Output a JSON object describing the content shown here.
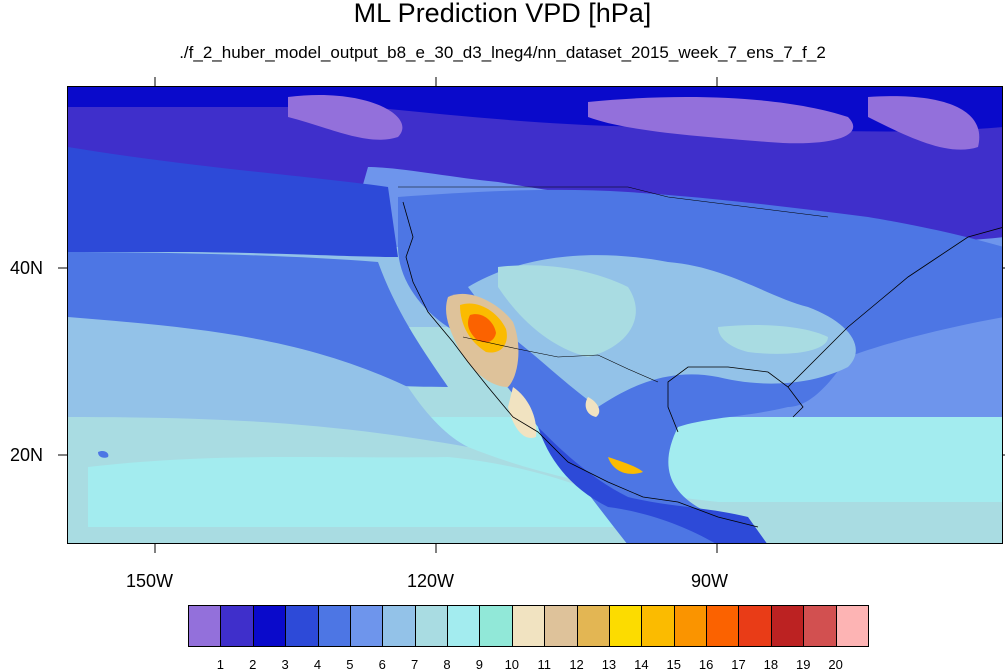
{
  "title": "ML Prediction VPD [hPa]",
  "subtitle": "./f_2_huber_model_output_b8_e_30_d3_lneg4/nn_dataset_2015_week_7_ens_7_f_2",
  "x_axis_labels": [
    "150W",
    "120W",
    "90W"
  ],
  "y_axis_labels": [
    "40N",
    "20N"
  ],
  "colorbar": {
    "colors": [
      "#9370db",
      "#3f2fcb",
      "#0a0acb",
      "#2d4ad8",
      "#4d76e4",
      "#6e95ec",
      "#93c2e8",
      "#a9dce2",
      "#a3ecef",
      "#91e8d8",
      "#f1e3c1",
      "#dec29a",
      "#e3b653",
      "#fcdc00",
      "#fbbb00",
      "#fa9400",
      "#fb6200",
      "#e93c17",
      "#bc2222",
      "#d25050",
      "#fdb4b4"
    ],
    "labels": [
      "1",
      "2",
      "3",
      "4",
      "5",
      "6",
      "7",
      "8",
      "9",
      "10",
      "11",
      "12",
      "13",
      "14",
      "15",
      "16",
      "17",
      "18",
      "19",
      "20"
    ]
  }
}
